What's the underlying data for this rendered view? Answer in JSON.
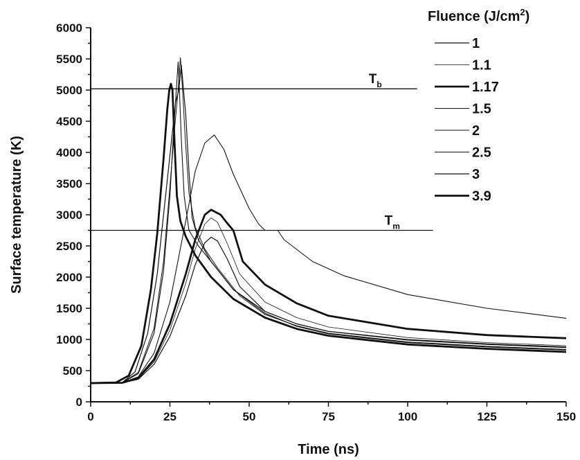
{
  "chart_data": {
    "type": "line",
    "xlabel": "Time (ns)",
    "ylabel": "Surface temperature (K)",
    "xlim": [
      0,
      150
    ],
    "ylim": [
      0,
      6000
    ],
    "x_ticks": [
      0,
      25,
      50,
      75,
      100,
      125,
      150
    ],
    "y_ticks": [
      0,
      500,
      1000,
      1500,
      2000,
      2500,
      3000,
      3500,
      4000,
      4500,
      5000,
      5500,
      6000
    ],
    "grid": false,
    "legend": {
      "title": "Fluence (J/cm",
      "title_sup": "2",
      "title_end": ")",
      "position": "top-right"
    },
    "annotations": [
      {
        "label": "T",
        "sub": "b",
        "y": 5020,
        "x_end": 103
      },
      {
        "label": "T",
        "sub": "m",
        "y": 2750,
        "x_end": 108
      }
    ],
    "series": [
      {
        "name": "1",
        "weight": 1.2,
        "points": [
          [
            0,
            300
          ],
          [
            10,
            305
          ],
          [
            15,
            360
          ],
          [
            20,
            600
          ],
          [
            25,
            1050
          ],
          [
            30,
            1700
          ],
          [
            33,
            2200
          ],
          [
            36,
            2550
          ],
          [
            38,
            2640
          ],
          [
            40,
            2580
          ],
          [
            43,
            2300
          ],
          [
            47,
            1850
          ],
          [
            55,
            1450
          ],
          [
            65,
            1250
          ],
          [
            75,
            1130
          ],
          [
            100,
            990
          ],
          [
            125,
            920
          ],
          [
            150,
            870
          ]
        ]
      },
      {
        "name": "1.1",
        "weight": 0.8,
        "points": [
          [
            0,
            300
          ],
          [
            10,
            305
          ],
          [
            15,
            370
          ],
          [
            20,
            640
          ],
          [
            25,
            1150
          ],
          [
            30,
            1900
          ],
          [
            33,
            2450
          ],
          [
            36,
            2850
          ],
          [
            38,
            2950
          ],
          [
            40,
            2880
          ],
          [
            43,
            2550
          ],
          [
            47,
            2050
          ],
          [
            55,
            1600
          ],
          [
            65,
            1350
          ],
          [
            75,
            1200
          ],
          [
            100,
            1030
          ],
          [
            125,
            950
          ],
          [
            150,
            900
          ]
        ]
      },
      {
        "name": "1.17",
        "weight": 2.8,
        "points": [
          [
            0,
            300
          ],
          [
            10,
            305
          ],
          [
            15,
            380
          ],
          [
            20,
            680
          ],
          [
            25,
            1250
          ],
          [
            30,
            2050
          ],
          [
            33,
            2600
          ],
          [
            36,
            3000
          ],
          [
            38,
            3080
          ],
          [
            41,
            3000
          ],
          [
            43,
            2870
          ],
          [
            45,
            2750
          ],
          [
            48,
            2250
          ],
          [
            55,
            1880
          ],
          [
            65,
            1580
          ],
          [
            75,
            1380
          ],
          [
            100,
            1170
          ],
          [
            125,
            1070
          ],
          [
            150,
            1020
          ]
        ]
      },
      {
        "name": "1.5",
        "weight": 1.1,
        "points": [
          [
            0,
            300
          ],
          [
            10,
            310
          ],
          [
            15,
            400
          ],
          [
            20,
            780
          ],
          [
            25,
            1600
          ],
          [
            30,
            2900
          ],
          [
            33,
            3700
          ],
          [
            36,
            4150
          ],
          [
            39,
            4280
          ],
          [
            42,
            4050
          ],
          [
            45,
            3650
          ],
          [
            50,
            3100
          ],
          [
            53,
            2850
          ],
          [
            55,
            2750
          ],
          [
            59,
            2750
          ],
          [
            61,
            2600
          ],
          [
            70,
            2250
          ],
          [
            80,
            2020
          ],
          [
            100,
            1720
          ],
          [
            125,
            1500
          ],
          [
            150,
            1340
          ]
        ]
      },
      {
        "name": "2",
        "weight": 1.1,
        "points": [
          [
            0,
            300
          ],
          [
            10,
            310
          ],
          [
            15,
            450
          ],
          [
            20,
            1100
          ],
          [
            23,
            2100
          ],
          [
            25,
            3300
          ],
          [
            26,
            4200
          ],
          [
            27,
            5000
          ],
          [
            27.6,
            5450
          ],
          [
            28,
            5000
          ],
          [
            28.6,
            4200
          ],
          [
            29.5,
            3300
          ],
          [
            31,
            2750
          ],
          [
            34,
            2500
          ],
          [
            38,
            2250
          ],
          [
            45,
            1800
          ],
          [
            55,
            1450
          ],
          [
            65,
            1250
          ],
          [
            75,
            1130
          ],
          [
            100,
            1000
          ],
          [
            125,
            930
          ],
          [
            150,
            880
          ]
        ]
      },
      {
        "name": "2.5",
        "weight": 1.0,
        "points": [
          [
            0,
            300
          ],
          [
            10,
            310
          ],
          [
            15,
            470
          ],
          [
            20,
            1180
          ],
          [
            23,
            2250
          ],
          [
            25,
            3450
          ],
          [
            26.5,
            4400
          ],
          [
            27.6,
            5000
          ],
          [
            28.3,
            5520
          ],
          [
            29,
            5000
          ],
          [
            29.8,
            4250
          ],
          [
            31,
            3350
          ],
          [
            33,
            2800
          ],
          [
            36,
            2450
          ],
          [
            40,
            2150
          ],
          [
            47,
            1700
          ],
          [
            55,
            1400
          ],
          [
            65,
            1220
          ],
          [
            75,
            1100
          ],
          [
            100,
            960
          ],
          [
            125,
            890
          ],
          [
            150,
            840
          ]
        ]
      },
      {
        "name": "3",
        "weight": 1.2,
        "points": [
          [
            0,
            300
          ],
          [
            10,
            310
          ],
          [
            14,
            480
          ],
          [
            18,
            1100
          ],
          [
            21,
            2050
          ],
          [
            23,
            3000
          ],
          [
            25,
            3950
          ],
          [
            26.8,
            4800
          ],
          [
            27.8,
            5000
          ],
          [
            28.6,
            5400
          ],
          [
            29.3,
            5000
          ],
          [
            30,
            4600
          ],
          [
            31,
            3700
          ],
          [
            32,
            2950
          ],
          [
            34,
            2600
          ],
          [
            38,
            2250
          ],
          [
            45,
            1800
          ],
          [
            55,
            1420
          ],
          [
            65,
            1210
          ],
          [
            75,
            1090
          ],
          [
            100,
            950
          ],
          [
            125,
            880
          ],
          [
            150,
            830
          ]
        ]
      },
      {
        "name": "3.9",
        "weight": 2.8,
        "points": [
          [
            0,
            300
          ],
          [
            8,
            310
          ],
          [
            12,
            420
          ],
          [
            16,
            900
          ],
          [
            19,
            1800
          ],
          [
            21,
            2700
          ],
          [
            23,
            3900
          ],
          [
            24.2,
            4700
          ],
          [
            24.8,
            5000
          ],
          [
            25.3,
            5100
          ],
          [
            25.8,
            5000
          ],
          [
            26.5,
            4100
          ],
          [
            27.2,
            3300
          ],
          [
            28.3,
            2900
          ],
          [
            30,
            2650
          ],
          [
            33,
            2350
          ],
          [
            38,
            2000
          ],
          [
            45,
            1650
          ],
          [
            55,
            1350
          ],
          [
            65,
            1170
          ],
          [
            75,
            1060
          ],
          [
            100,
            920
          ],
          [
            125,
            850
          ],
          [
            150,
            800
          ]
        ]
      }
    ]
  }
}
